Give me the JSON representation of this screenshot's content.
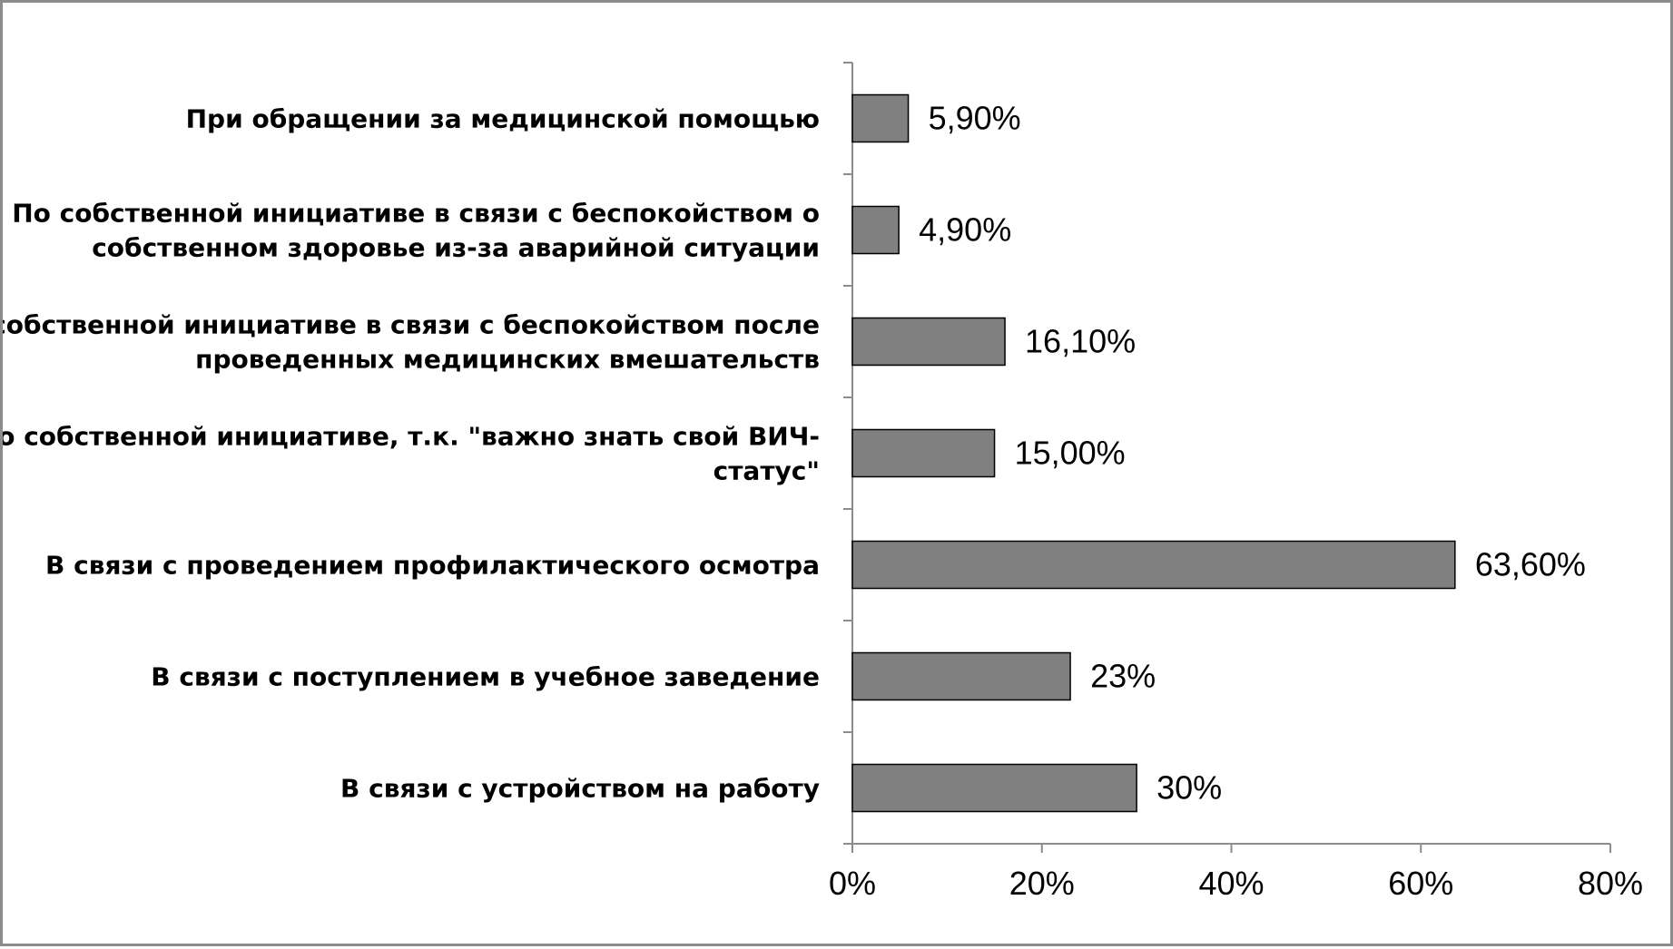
{
  "colors": {
    "bar_fill": "#808080",
    "bar_stroke": "#000000",
    "axis": "#8c8c8c",
    "frame": "#8c8c8c"
  },
  "chart_data": {
    "type": "bar",
    "orientation": "horizontal",
    "title": "",
    "xlabel": "",
    "ylabel": "",
    "xlim": [
      0,
      80
    ],
    "x_ticks": [
      0,
      20,
      40,
      60,
      80
    ],
    "x_tick_labels": [
      "0%",
      "20%",
      "40%",
      "60%",
      "80%"
    ],
    "grid": false,
    "legend": "none",
    "categories": [
      [
        "При обращении за медицинской помощью"
      ],
      [
        "По собственной инициативе в связи с беспокойством о",
        "собственном здоровье из-за аварийной ситуации"
      ],
      [
        "По собственной инициативе в связи с беспокойством после",
        "проведенных медицинских вмешательств"
      ],
      [
        "По собственной инициативе, т.к. \"важно знать свой ВИЧ-",
        "статус\""
      ],
      [
        "В связи с проведением профилактического осмотра"
      ],
      [
        "В связи с поступлением в учебное заведение"
      ],
      [
        "В связи с устройством на работу"
      ]
    ],
    "values": [
      5.9,
      4.9,
      16.1,
      15.0,
      63.6,
      23,
      30
    ],
    "value_labels": [
      "5,90%",
      "4,90%",
      "16,10%",
      "15,00%",
      "63,60%",
      "23%",
      "30%"
    ]
  }
}
